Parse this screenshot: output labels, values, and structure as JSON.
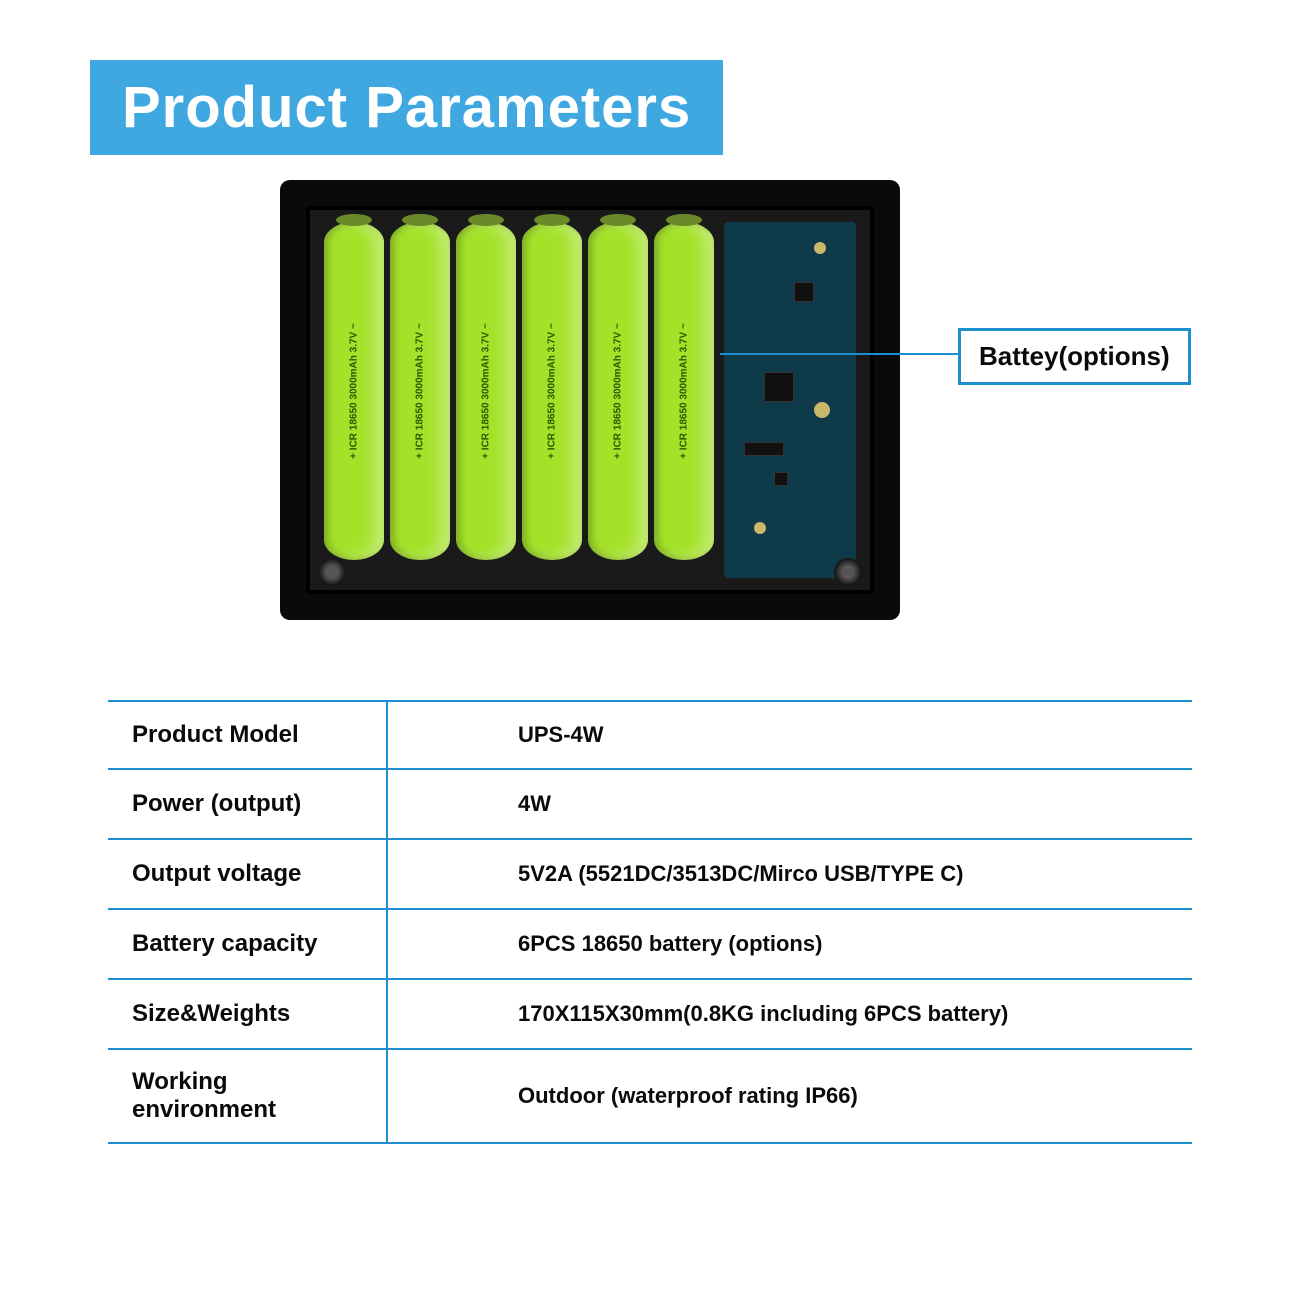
{
  "title": "Product Parameters",
  "title_bg": "#3fa8e0",
  "title_color": "#ffffff",
  "battery_color": "#a4e22a",
  "battery_label": "+ ICR 18650 3000mAh 3.7V −",
  "pcb_color": "#0f3a4a",
  "pcb_pad_color": "#c9b86a",
  "callout": {
    "label": "Battey(options)",
    "border_color": "#1d8fd1",
    "text_color": "#0a0a0a"
  },
  "table": {
    "border_color": "#1d8fd1",
    "rows": [
      {
        "label": "Product Model",
        "value": "UPS-4W"
      },
      {
        "label": "Power (output)",
        "value": "4W"
      },
      {
        "label": "Output voltage",
        "value": "5V2A  (5521DC/3513DC/Mirco USB/TYPE C)"
      },
      {
        "label": "Battery capacity",
        "value": "6PCS 18650 battery (options)"
      },
      {
        "label": "Size&Weights",
        "value": "170X115X30mm(0.8KG including 6PCS battery)"
      },
      {
        "label": "Working environment",
        "value": "Outdoor (waterproof rating IP66)"
      }
    ]
  }
}
